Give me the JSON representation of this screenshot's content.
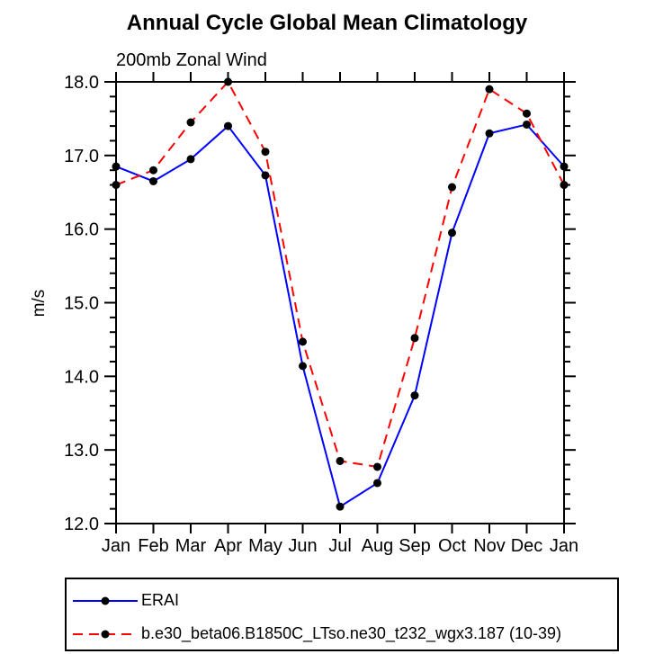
{
  "figure": {
    "background": "#ffffff",
    "text_color": "#000000"
  },
  "chart_data": {
    "type": "line",
    "title": "Annual Cycle Global Mean Climatology",
    "subtitle": "200mb Zonal Wind",
    "ylabel": "m/s",
    "xlabel": "",
    "categories": [
      "Jan",
      "Feb",
      "Mar",
      "Apr",
      "May",
      "Jun",
      "Jul",
      "Aug",
      "Sep",
      "Oct",
      "Nov",
      "Dec",
      "Jan"
    ],
    "series": [
      {
        "name": "ERAI",
        "color": "#0000ff",
        "line_style": "solid",
        "marker": "filled-circle",
        "marker_color": "#000000",
        "values": [
          16.85,
          16.65,
          16.95,
          17.4,
          16.73,
          14.14,
          12.23,
          12.55,
          13.74,
          15.95,
          17.3,
          17.42,
          16.85
        ]
      },
      {
        "name": "b.e30_beta06.B1850C_LTso.ne30_t232_wgx3.187 (10-39)",
        "color": "#ff0000",
        "line_style": "dashed",
        "marker": "filled-circle",
        "marker_color": "#000000",
        "values": [
          16.6,
          16.8,
          17.45,
          18.0,
          17.05,
          14.47,
          12.85,
          12.77,
          14.52,
          16.57,
          17.9,
          17.57,
          16.6
        ]
      }
    ],
    "ylim": [
      12.0,
      18.0
    ],
    "ytick_major_interval": 1.0,
    "ytick_minor_interval": 0.2,
    "ytick_label_format": "one_decimal",
    "grid": false,
    "legend_position": "bottom-left-box"
  }
}
